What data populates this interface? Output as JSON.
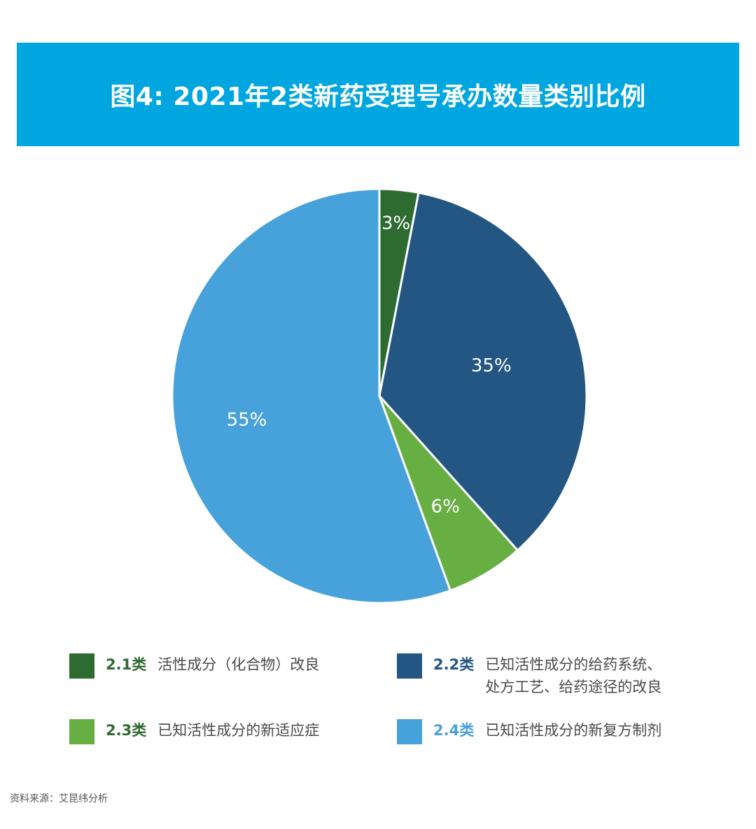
{
  "title": "图4: 2021年2类新药受理号承办数量类别比例",
  "colors": {
    "banner": "#00a6df",
    "c21": "#2e6b30",
    "c22": "#235682",
    "c23": "#67ae43",
    "c24": "#47a1da",
    "code24_text": "#47a1da"
  },
  "chart_data": {
    "type": "pie",
    "slices": [
      {
        "code": "2.1类",
        "label": "活性成分（化合物）改良",
        "value": 3,
        "value_label": "3%",
        "color": "#2e6b30"
      },
      {
        "code": "2.2类",
        "label": "已知活性成分的给药系统、处方工艺、给药途径的改良",
        "label_lines": [
          "已知活性成分的给药系统、",
          "处方工艺、给药途径的改良"
        ],
        "value": 35,
        "value_label": "35%",
        "color": "#235682"
      },
      {
        "code": "2.3类",
        "label": "已知活性成分的新适应症",
        "value": 6,
        "value_label": "6%",
        "color": "#67ae43"
      },
      {
        "code": "2.4类",
        "label": "已知活性成分的新复方制剂",
        "value": 55,
        "value_label": "55%",
        "color": "#47a1da"
      }
    ],
    "start_angle_deg": 0,
    "direction": "clockwise",
    "legend_position": "bottom"
  },
  "legend": [
    {
      "code": "2.1类",
      "lines": [
        "活性成分（化合物）改良"
      ],
      "swatch": "#2e6b30",
      "code_color": "#2e6b30"
    },
    {
      "code": "2.2类",
      "lines": [
        "已知活性成分的给药系统、",
        "处方工艺、给药途径的改良"
      ],
      "swatch": "#235682",
      "code_color": "#235682"
    },
    {
      "code": "2.3类",
      "lines": [
        "已知活性成分的新适应症"
      ],
      "swatch": "#67ae43",
      "code_color": "#2e6b30"
    },
    {
      "code": "2.4类",
      "lines": [
        "已知活性成分的新复方制剂"
      ],
      "swatch": "#47a1da",
      "code_color": "#47a1da"
    }
  ],
  "source": "资料来源：艾昆纬分析"
}
